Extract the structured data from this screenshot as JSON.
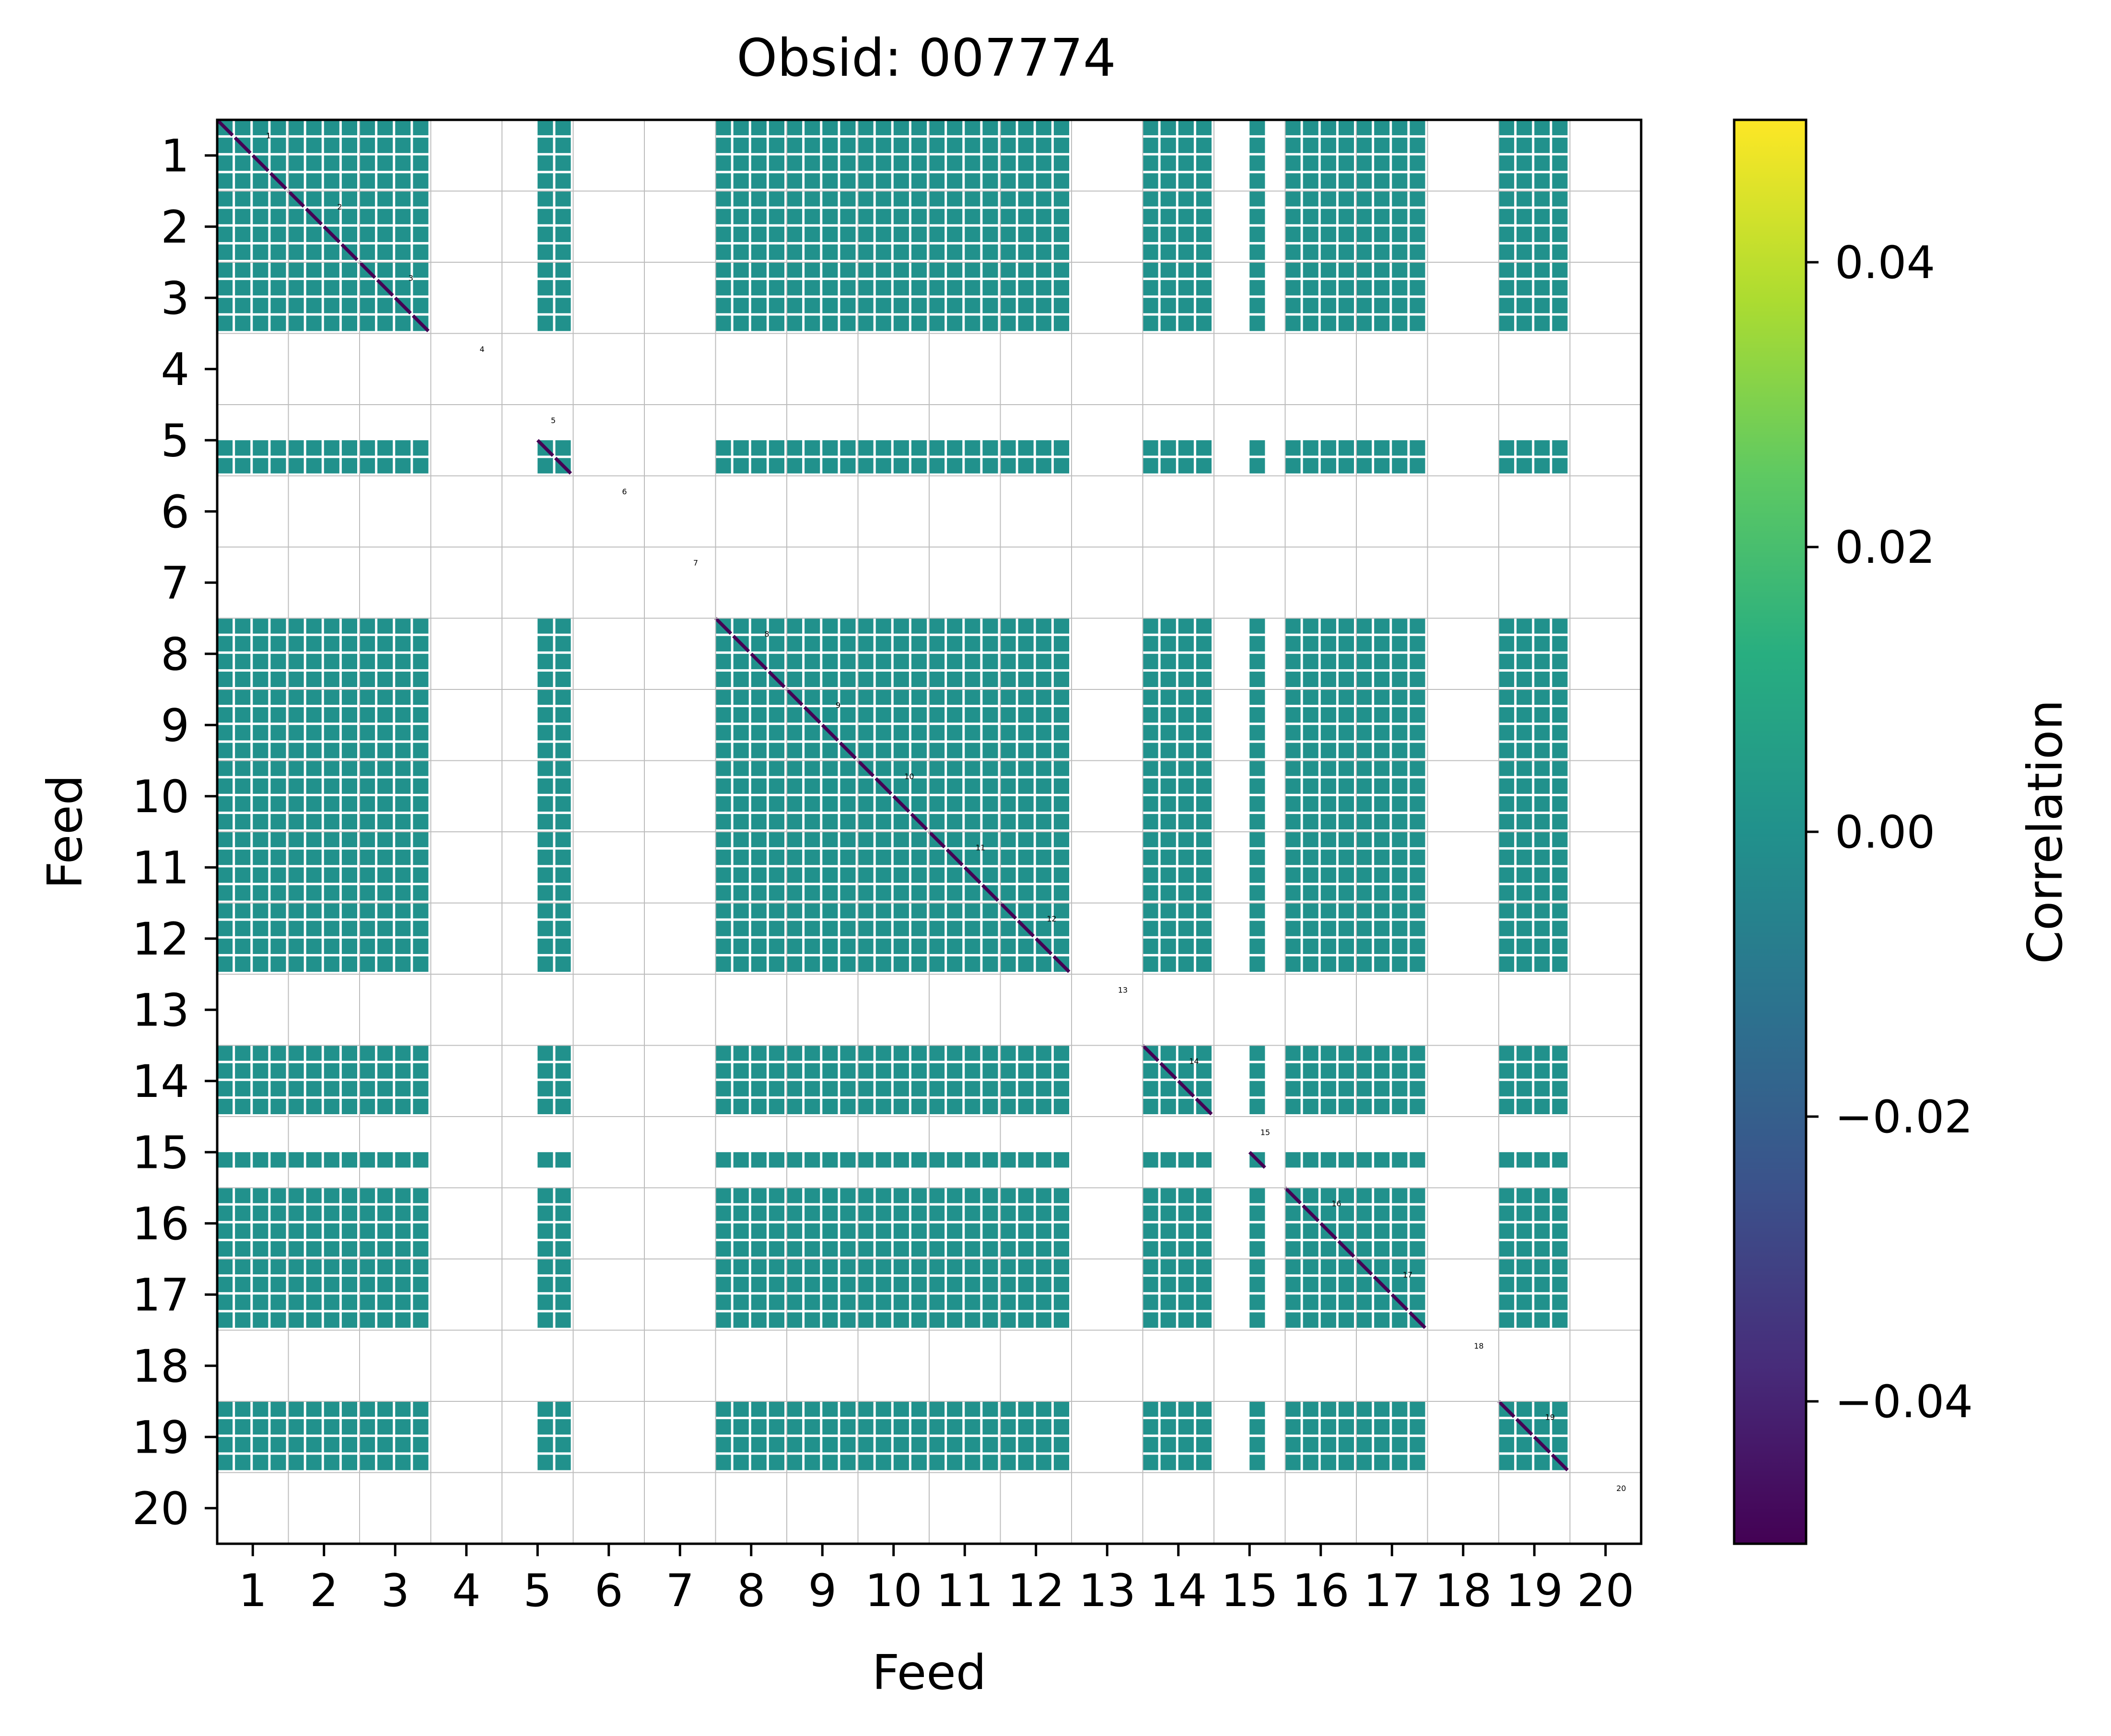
{
  "chart_data": {
    "type": "heatmap",
    "title": "Obsid: 007774",
    "xlabel": "Feed",
    "ylabel": "Feed",
    "x_tick_labels": [
      "1",
      "2",
      "3",
      "4",
      "5",
      "6",
      "7",
      "8",
      "9",
      "10",
      "11",
      "12",
      "13",
      "14",
      "15",
      "16",
      "17",
      "18",
      "19",
      "20"
    ],
    "y_tick_labels": [
      "1",
      "2",
      "3",
      "4",
      "5",
      "6",
      "7",
      "8",
      "9",
      "10",
      "11",
      "12",
      "13",
      "14",
      "15",
      "16",
      "17",
      "18",
      "19",
      "20"
    ],
    "xlim": [
      0.5,
      20.5
    ],
    "ylim": [
      20.5,
      0.5
    ],
    "sidebands_per_feed": 4,
    "diagonal_labels": [
      "1",
      "2",
      "3",
      "4",
      "5",
      "6",
      "7",
      "8",
      "9",
      "10",
      "11",
      "12",
      "13",
      "14",
      "15",
      "16",
      "17",
      "18",
      "19",
      "20"
    ],
    "valid_sidebands": {
      "1": [
        1,
        2,
        3,
        4
      ],
      "2": [
        1,
        2,
        3,
        4
      ],
      "3": [
        1,
        2,
        3,
        4
      ],
      "4": [],
      "5": [
        3,
        4
      ],
      "6": [],
      "7": [],
      "8": [
        1,
        2,
        3,
        4
      ],
      "9": [
        1,
        2,
        3,
        4
      ],
      "10": [
        1,
        2,
        3,
        4
      ],
      "11": [
        1,
        2,
        3,
        4
      ],
      "12": [
        1,
        2,
        3,
        4
      ],
      "13": [],
      "14": [
        1,
        2,
        3,
        4
      ],
      "15": [
        3
      ],
      "16": [
        1,
        2,
        3,
        4
      ],
      "17": [
        1,
        2,
        3,
        4
      ],
      "18": [],
      "19": [
        1,
        2,
        3,
        4
      ],
      "20": []
    },
    "rows": [
      {
        "feed": 1,
        "sideband": 1,
        "cells": [
          1,
          2,
          3,
          4,
          5,
          6,
          7,
          8,
          9,
          10,
          11,
          12,
          13,
          14,
          15,
          16,
          17,
          18,
          19,
          20
        ]
      },
      {
        "feed": 1,
        "sideband": 2,
        "cells": [
          1,
          2,
          3,
          4,
          5,
          6,
          7,
          8,
          9,
          10,
          11,
          12,
          13,
          14,
          15,
          16,
          17,
          18,
          19,
          20
        ]
      },
      {
        "feed": 1,
        "sideband": 3,
        "cells": [
          1,
          2,
          3,
          4,
          5,
          6,
          7,
          8,
          9,
          10,
          11,
          12,
          13,
          14,
          15,
          16,
          17,
          18,
          19,
          20
        ]
      },
      {
        "feed": 1,
        "sideband": 4,
        "cells": [
          1,
          2,
          3,
          4,
          5,
          6,
          7,
          8,
          9,
          10,
          11,
          12,
          13,
          14,
          15,
          16,
          17,
          18,
          19,
          20
        ]
      }
    ],
    "values": {
      "uniform_value": 0.0,
      "diagonal_value": -0.05,
      "missing": "NaN (blank)"
    },
    "colorbar": {
      "label": "Correlation",
      "colormap": "viridis",
      "range": [
        -0.05,
        0.05
      ],
      "ticks": [
        -0.04,
        -0.02,
        0.0,
        0.02,
        0.04
      ],
      "tick_labels": [
        "−0.04",
        "−0.02",
        "0.00",
        "0.02",
        "0.04"
      ]
    }
  },
  "colors": {
    "cell": "#21918c",
    "diagonal": "#440154",
    "grid": "#bdbdbd",
    "axes": "#000000"
  }
}
